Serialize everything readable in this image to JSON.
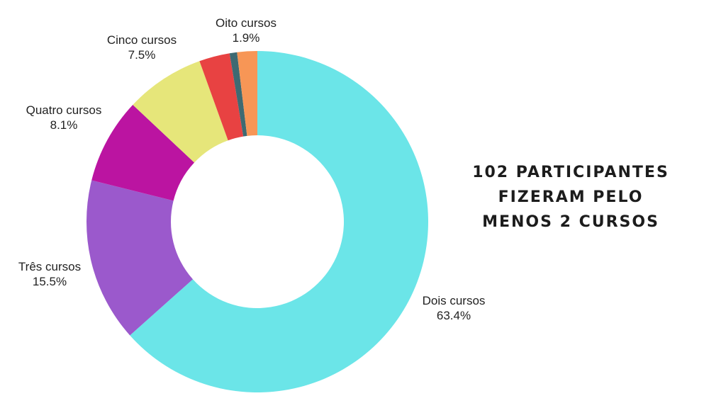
{
  "headline": {
    "line1": "102 PARTICIPANTES",
    "line2": "FIZERAM PELO",
    "line3": "MENOS 2 CURSOS"
  },
  "chart_data": {
    "type": "pie",
    "donut": true,
    "start": "top",
    "direction": "clockwise",
    "slices": [
      {
        "label": "Dois cursos",
        "value": 63.4,
        "value_label": "63.4%",
        "color": "#6be5e8",
        "labeled": true
      },
      {
        "label": "Três cursos",
        "value": 15.5,
        "value_label": "15.5%",
        "color": "#9b59cc",
        "labeled": true
      },
      {
        "label": "Quatro cursos",
        "value": 8.1,
        "value_label": "8.1%",
        "color": "#bb14a1",
        "labeled": true
      },
      {
        "label": "Cinco cursos",
        "value": 7.5,
        "value_label": "7.5%",
        "color": "#e6e67a",
        "labeled": true
      },
      {
        "label": "",
        "value": 2.9,
        "value_label": "",
        "color": "#e84242",
        "labeled": false
      },
      {
        "label": "",
        "value": 0.7,
        "value_label": "",
        "color": "#3e6a72",
        "labeled": false
      },
      {
        "label": "Oito cursos",
        "value": 1.9,
        "value_label": "1.9%",
        "color": "#f79656",
        "labeled": true
      }
    ]
  }
}
